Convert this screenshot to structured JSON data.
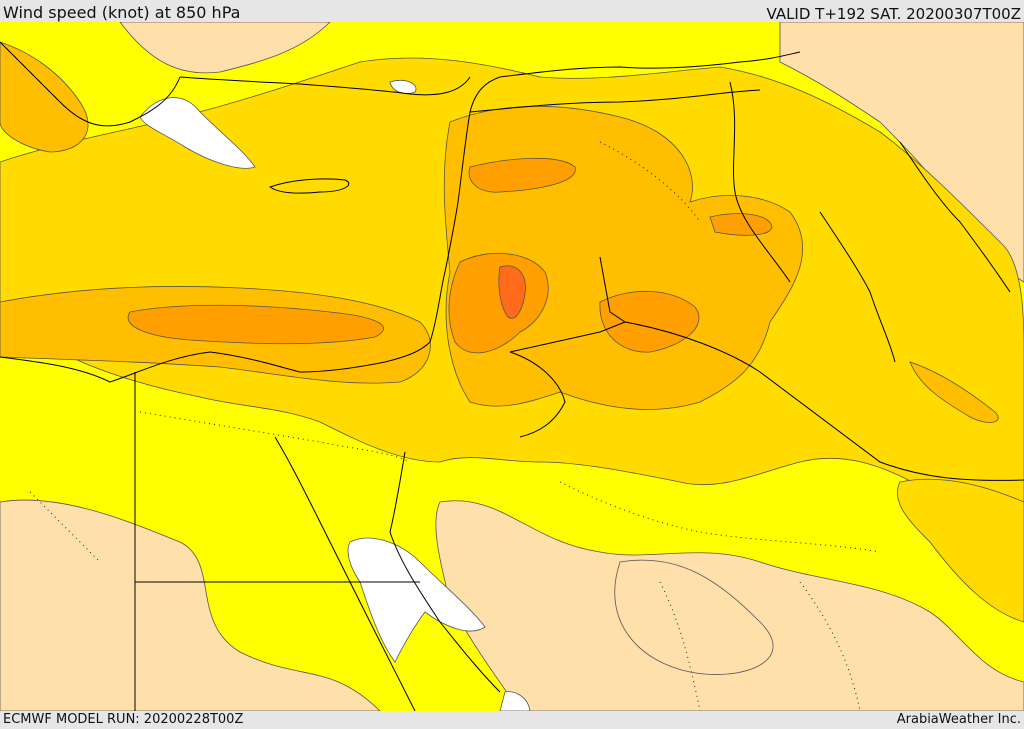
{
  "header": {
    "title": "Wind speed (knot) at 850 hPa",
    "valid_time": "VALID T+192 SAT. 20200307T00Z"
  },
  "footer": {
    "model_run": "ECMWF MODEL RUN: 20200228T00Z",
    "credit": "ArabiaWeather Inc."
  },
  "colors": {
    "calm": "#ffffff",
    "light": "#ffe0aa",
    "moderate": "#ffff00",
    "fresh": "#ffdb00",
    "strong": "#ffbf00",
    "very_strong": "#ff9f00",
    "extreme": "#ff6b1a",
    "border": "#000000"
  }
}
